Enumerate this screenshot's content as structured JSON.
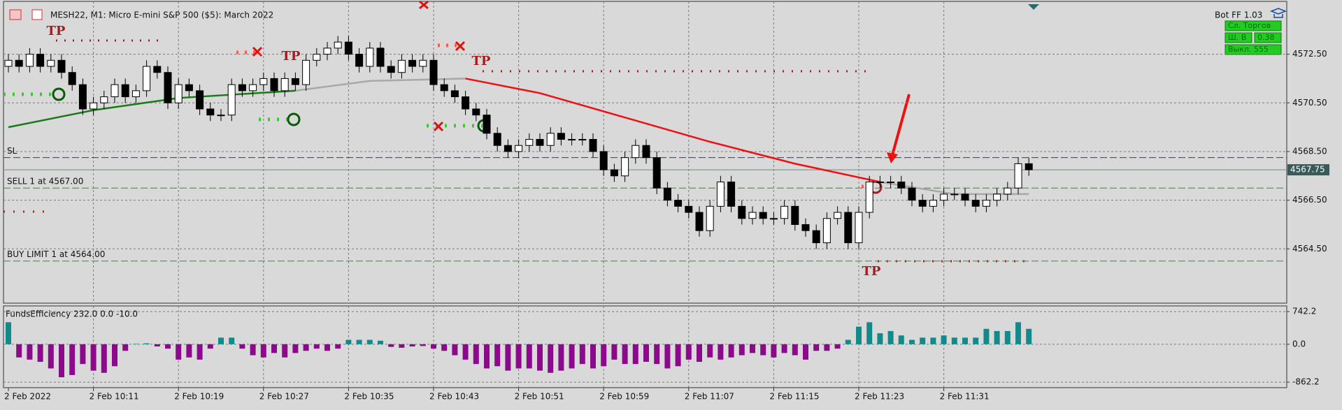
{
  "header": {
    "title": "MESH22, M1:  Micro E-mini S&P 500 ($5): March 2022",
    "bot": "Bot FF 1.03",
    "buttons": [
      "Сл. Торгов",
      "Ш. В",
      "0.38",
      "Выкл. 555"
    ]
  },
  "chart_data": [
    {
      "type": "candlestick",
      "open": [
        4572.0,
        4572.25,
        4572.0,
        4572.5,
        4572.0,
        4572.25,
        4571.75,
        4571.25,
        4570.25,
        4570.5,
        4570.75,
        4571.25,
        4570.75,
        4571.0,
        4572.0,
        4571.75,
        4570.5,
        4571.25,
        4571.0,
        4570.25,
        4570.0,
        4570.0,
        4571.25,
        4571.0,
        4571.25,
        4571.5,
        4571.0,
        4571.5,
        4571.25,
        4572.25,
        4572.5,
        4572.75,
        4573.0,
        4572.5,
        4572.0,
        4572.75,
        4572.0,
        4571.75,
        4572.25,
        4572.0,
        4572.25,
        4571.25,
        4571.0,
        4570.75,
        4570.25,
        4570.0,
        4569.25,
        4568.75,
        4568.5,
        4568.75,
        4569.0,
        4568.75,
        4569.25,
        4569.0,
        4569.0,
        4569.0,
        4568.5,
        4567.75,
        4567.5,
        4568.25,
        4568.75,
        4568.25,
        4567.0,
        4566.5,
        4566.25,
        4566.0,
        4565.25,
        4566.25,
        4567.25,
        4566.25,
        4565.75,
        4566.0,
        4565.75,
        4565.75,
        4566.25,
        4565.5,
        4565.25,
        4564.75,
        4565.75,
        4566.0,
        4564.75,
        4566.0,
        4567.25,
        4567.25,
        4567.25,
        4567.0,
        4566.5,
        4566.25,
        4566.5,
        4566.75,
        4566.75,
        4566.5,
        4566.25,
        4566.5,
        4566.75,
        4567.0,
        4568.0
      ],
      "high": [
        4572.5,
        4572.5,
        4572.75,
        4572.75,
        4572.5,
        4572.5,
        4572.0,
        4571.5,
        4570.75,
        4571.0,
        4571.5,
        4571.5,
        4571.25,
        4572.25,
        4572.25,
        4572.0,
        4571.5,
        4571.5,
        4571.25,
        4570.5,
        4570.25,
        4571.5,
        4571.5,
        4571.5,
        4571.75,
        4571.75,
        4571.75,
        4571.75,
        4572.5,
        4572.75,
        4573.0,
        4573.25,
        4573.25,
        4572.75,
        4573.0,
        4573.0,
        4572.25,
        4572.5,
        4572.5,
        4572.5,
        4572.5,
        4571.5,
        4571.25,
        4571.0,
        4570.5,
        4570.25,
        4569.5,
        4569.0,
        4569.0,
        4569.25,
        4569.25,
        4569.5,
        4569.5,
        4569.25,
        4569.25,
        4569.25,
        4568.75,
        4568.0,
        4568.5,
        4569.0,
        4569.0,
        4568.5,
        4567.25,
        4566.75,
        4566.5,
        4566.25,
        4566.5,
        4567.5,
        4567.5,
        4566.5,
        4566.25,
        4566.25,
        4566.0,
        4566.5,
        4566.5,
        4565.75,
        4565.5,
        4566.0,
        4566.25,
        4566.25,
        4566.25,
        4567.5,
        4567.5,
        4567.5,
        4567.5,
        4567.25,
        4566.75,
        4566.75,
        4567.0,
        4567.0,
        4567.0,
        4566.75,
        4566.75,
        4567.0,
        4567.25,
        4568.25,
        4568.25
      ],
      "low": [
        4571.75,
        4571.75,
        4571.75,
        4571.75,
        4571.75,
        4571.5,
        4571.0,
        4570.0,
        4570.0,
        4570.25,
        4570.5,
        4570.5,
        4570.5,
        4570.75,
        4571.5,
        4570.25,
        4570.25,
        4570.75,
        4570.0,
        4569.75,
        4569.75,
        4569.75,
        4570.75,
        4570.75,
        4571.0,
        4570.75,
        4570.75,
        4571.0,
        4571.0,
        4572.0,
        4572.25,
        4572.5,
        4572.25,
        4571.75,
        4571.75,
        4571.75,
        4571.5,
        4571.5,
        4571.75,
        4571.75,
        4571.0,
        4570.75,
        4570.5,
        4570.0,
        4569.75,
        4569.0,
        4568.5,
        4568.25,
        4568.25,
        4568.5,
        4568.5,
        4568.5,
        4568.75,
        4568.75,
        4568.75,
        4568.25,
        4567.5,
        4567.25,
        4567.25,
        4568.0,
        4568.0,
        4566.75,
        4566.25,
        4566.0,
        4565.75,
        4565.0,
        4565.0,
        4566.0,
        4566.0,
        4565.5,
        4565.5,
        4565.5,
        4565.5,
        4565.5,
        4565.25,
        4565.0,
        4564.5,
        4564.5,
        4565.5,
        4564.5,
        4564.5,
        4565.75,
        4567.0,
        4567.0,
        4566.75,
        4566.25,
        4566.0,
        4566.0,
        4566.25,
        4566.5,
        4566.25,
        4566.0,
        4566.0,
        4566.25,
        4566.5,
        4566.75,
        4567.5
      ],
      "close": [
        4572.25,
        4572.0,
        4572.5,
        4572.0,
        4572.25,
        4571.75,
        4571.25,
        4570.25,
        4570.5,
        4570.75,
        4571.25,
        4570.75,
        4571.0,
        4572.0,
        4571.75,
        4570.5,
        4571.25,
        4571.0,
        4570.25,
        4570.0,
        4570.0,
        4571.25,
        4571.0,
        4571.25,
        4571.5,
        4571.0,
        4571.5,
        4571.25,
        4572.25,
        4572.5,
        4572.75,
        4573.0,
        4572.5,
        4572.0,
        4572.75,
        4572.0,
        4571.75,
        4572.25,
        4572.0,
        4572.25,
        4571.25,
        4571.0,
        4570.75,
        4570.25,
        4570.0,
        4569.25,
        4568.75,
        4568.5,
        4568.75,
        4569.0,
        4568.75,
        4569.25,
        4569.0,
        4569.0,
        4569.0,
        4568.5,
        4567.75,
        4567.5,
        4568.25,
        4568.75,
        4568.25,
        4567.0,
        4566.5,
        4566.25,
        4566.0,
        4565.25,
        4566.25,
        4567.25,
        4566.25,
        4565.75,
        4566.0,
        4565.75,
        4565.75,
        4566.25,
        4565.5,
        4565.25,
        4564.75,
        4565.75,
        4566.0,
        4564.75,
        4566.0,
        4567.25,
        4567.25,
        4567.25,
        4567.0,
        4566.5,
        4566.25,
        4566.5,
        4566.75,
        4566.75,
        4566.5,
        4566.25,
        4566.5,
        4566.75,
        4567.0,
        4568.0,
        4567.75
      ],
      "lines": [
        {
          "color": "#1a7a1a",
          "x": [
            0,
            8,
            16,
            27
          ],
          "values": [
            4569.5,
            4570.2,
            4570.7,
            4571.0
          ]
        },
        {
          "color": "#a8a8a8",
          "x": [
            27,
            34,
            43
          ],
          "values": [
            4571.0,
            4571.4,
            4571.5
          ]
        },
        {
          "color": "#ee1111",
          "x": [
            43,
            50,
            58,
            66,
            74,
            82
          ],
          "values": [
            4571.5,
            4570.9,
            4569.9,
            4568.9,
            4568.0,
            4567.25
          ]
        },
        {
          "color": "#a8a8a8",
          "x": [
            82,
            89,
            96
          ],
          "values": [
            4567.25,
            4566.75,
            4566.75
          ]
        }
      ],
      "levels": [
        {
          "label": "SL",
          "value": 4568.25,
          "color": "#2a3a8a"
        },
        {
          "label": "SELL 1 at 4567.00",
          "value": 4567.0,
          "color": "#3a8a3a"
        },
        {
          "label": "BUY LIMIT 1 at 4564.00",
          "value": 4564.0,
          "color": "#3a8a3a"
        }
      ],
      "last": {
        "value": 4567.75,
        "label": "4567.75"
      },
      "annotations": [
        "TP",
        "TP",
        "TP",
        "TP"
      ],
      "ylim": [
        4562.27,
        4574.67
      ],
      "yticks": [
        {
          "value": 4564.5,
          "label": "4564.50"
        },
        {
          "value": 4566.5,
          "label": "4566.50"
        },
        {
          "value": 4568.5,
          "label": "4568.50"
        },
        {
          "value": 4570.5,
          "label": "4570.50"
        },
        {
          "value": 4572.5,
          "label": "4572.50"
        }
      ],
      "xticks": [
        {
          "value": 0,
          "label": "2 Feb 2022"
        },
        {
          "value": 8,
          "label": "2 Feb 10:11"
        },
        {
          "value": 16,
          "label": "2 Feb 10:19"
        },
        {
          "value": 24,
          "label": "2 Feb 10:27"
        },
        {
          "value": 32,
          "label": "2 Feb 10:35"
        },
        {
          "value": 40,
          "label": "2 Feb 10:43"
        },
        {
          "value": 48,
          "label": "2 Feb 10:51"
        },
        {
          "value": 56,
          "label": "2 Feb 10:59"
        },
        {
          "value": 64,
          "label": "2 Feb 11:07"
        },
        {
          "value": 72,
          "label": "2 Feb 11:15"
        },
        {
          "value": 80,
          "label": "2 Feb 11:23"
        },
        {
          "value": 88,
          "label": "2 Feb 11:31"
        }
      ],
      "grid": true
    },
    {
      "type": "bar",
      "title": "FundsEfficiency 232.0 0.0 -10.0",
      "values": [
        500,
        -300,
        -350,
        -400,
        -550,
        -750,
        -700,
        -450,
        -600,
        -650,
        -500,
        -150,
        10,
        20,
        -50,
        -100,
        -350,
        -300,
        -350,
        -100,
        150,
        150,
        -100,
        -250,
        -300,
        -200,
        -300,
        -200,
        -150,
        -100,
        -150,
        -100,
        100,
        100,
        100,
        80,
        -60,
        -80,
        -50,
        -40,
        -100,
        -150,
        -250,
        -350,
        -450,
        -550,
        -500,
        -600,
        -550,
        -550,
        -600,
        -650,
        -600,
        -550,
        -450,
        -550,
        -500,
        -350,
        -450,
        -450,
        -400,
        -450,
        -550,
        -500,
        -350,
        -400,
        -300,
        -350,
        -300,
        -250,
        -200,
        -250,
        -300,
        -200,
        -250,
        -350,
        -150,
        -150,
        -100,
        100,
        400,
        500,
        250,
        300,
        200,
        100,
        150,
        150,
        200,
        150,
        150,
        150,
        350,
        300,
        300,
        500,
        350
      ],
      "colors": {
        "positive": "#138a8a",
        "negative": "#8b0a8b"
      },
      "ylim": [
        -987,
        871
      ],
      "yticks": [
        -862.2,
        {
          "value": 0,
          "label": "0.0"
        },
        742.2
      ],
      "grid": true
    }
  ]
}
